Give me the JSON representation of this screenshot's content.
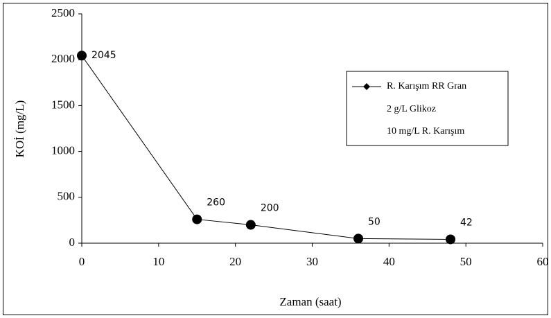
{
  "chart_data": {
    "type": "line",
    "x_label": "Zaman (saat)",
    "y_label": "KOİ (mg/L)",
    "x": [
      0,
      15,
      22,
      36,
      48
    ],
    "series": [
      {
        "name": "R. Karışım RR Gran",
        "color": "#000000",
        "values": [
          2045,
          260,
          200,
          50,
          42
        ]
      }
    ],
    "legend_notes": [
      "2 g/L Glikoz",
      "10 mg/L R. Karışım"
    ],
    "xlim": [
      0,
      60
    ],
    "xticks": [
      0,
      10,
      20,
      30,
      40,
      50,
      60
    ],
    "ylim": [
      0,
      2500
    ],
    "yticks": [
      0,
      500,
      1000,
      1500,
      2000,
      2500
    ],
    "grid": false,
    "legend_position": "right"
  }
}
